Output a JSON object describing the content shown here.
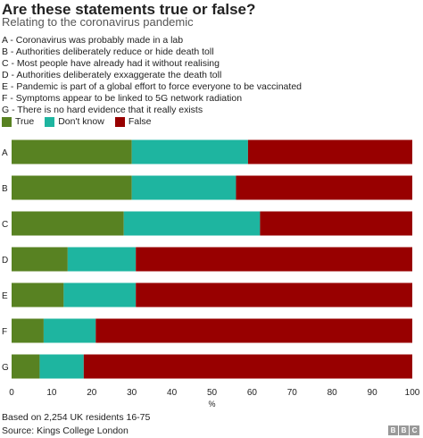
{
  "title": "Are these statements true or false?",
  "subtitle": "Relating to the coronavirus pandemic",
  "statements": [
    "A - Coronavirus was probably made in a lab",
    "B - Authorities deliberately reduce or hide death toll",
    "C - Most people have already had it without realising",
    "D - Authorities deliberately exxaggerate the death toll",
    "E - Pandemic is part of a global effort to force everyone to be vaccinated",
    "F - Symptoms appear to be linked to 5G network radiation",
    "G - There is no hard evidence that it really exists"
  ],
  "footnote": "Based on 2,254 UK residents 16-75",
  "source": "Source: Kings College London",
  "logo": [
    "B",
    "B",
    "C"
  ],
  "colors": {
    "true": "#588222",
    "dont_know": "#1eb5a0",
    "false": "#980000"
  },
  "chart_data": {
    "type": "bar",
    "orientation": "horizontal",
    "stacked": true,
    "categories": [
      "A",
      "B",
      "C",
      "D",
      "E",
      "F",
      "G"
    ],
    "series": [
      {
        "name": "True",
        "values": [
          30,
          30,
          28,
          14,
          13,
          8,
          7
        ]
      },
      {
        "name": "Don't know",
        "values": [
          29,
          26,
          34,
          17,
          18,
          13,
          11
        ]
      },
      {
        "name": "False",
        "values": [
          41,
          44,
          38,
          69,
          69,
          79,
          82
        ]
      }
    ],
    "xlabel": "%",
    "xlim": [
      0,
      100
    ],
    "xticks": [
      0,
      10,
      20,
      30,
      40,
      50,
      60,
      70,
      80,
      90,
      100
    ],
    "legend_position": "top-left",
    "grid": false
  }
}
